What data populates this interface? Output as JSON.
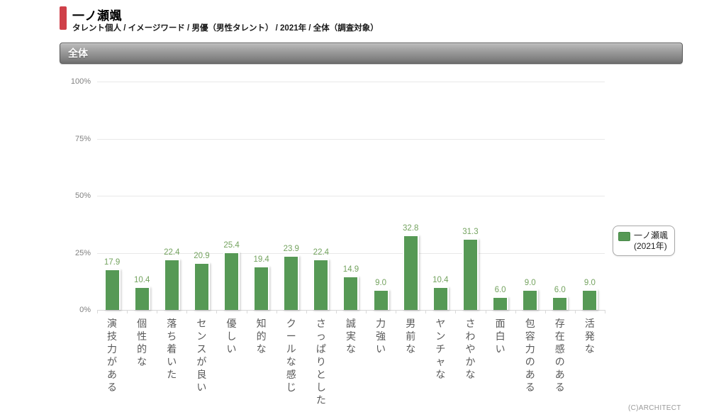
{
  "page": {
    "title": "一ノ瀬颯",
    "breadcrumb": "タレント個人 / イメージワード / 男優（男性タレント） / 2021年 / 全体（調査対象）",
    "section_header": "全体",
    "footer": "(C)ARCHITECT"
  },
  "legend": {
    "name": "一ノ瀬颯",
    "year": "(2021年)"
  },
  "colors": {
    "bar": "#569955",
    "value_label": "#74a35f",
    "accent_red": "#cf4049"
  },
  "chart_data": {
    "type": "bar",
    "title": "全体",
    "categories": [
      "演技力がある",
      "個性的な",
      "落ち着いた",
      "センスが良い",
      "優しい",
      "知的な",
      "クールな感じ",
      "さっぱりとした",
      "誠実な",
      "力強い",
      "男前な",
      "ヤンチャな",
      "さわやかな",
      "面白い",
      "包容力のある",
      "存在感のある",
      "活発な"
    ],
    "values": [
      17.9,
      10.4,
      22.4,
      20.9,
      25.4,
      19.4,
      23.9,
      22.4,
      14.9,
      9.0,
      32.8,
      10.4,
      31.3,
      6.0,
      9.0,
      6.0,
      9.0
    ],
    "xlabel": "",
    "ylabel": "",
    "ylim": [
      0,
      100
    ],
    "yticks": [
      0,
      25,
      50,
      75,
      100
    ],
    "ytick_suffix": "%",
    "grid": true,
    "legend_entries": [
      "一ノ瀬颯 (2021年)"
    ],
    "legend_position": "right"
  }
}
